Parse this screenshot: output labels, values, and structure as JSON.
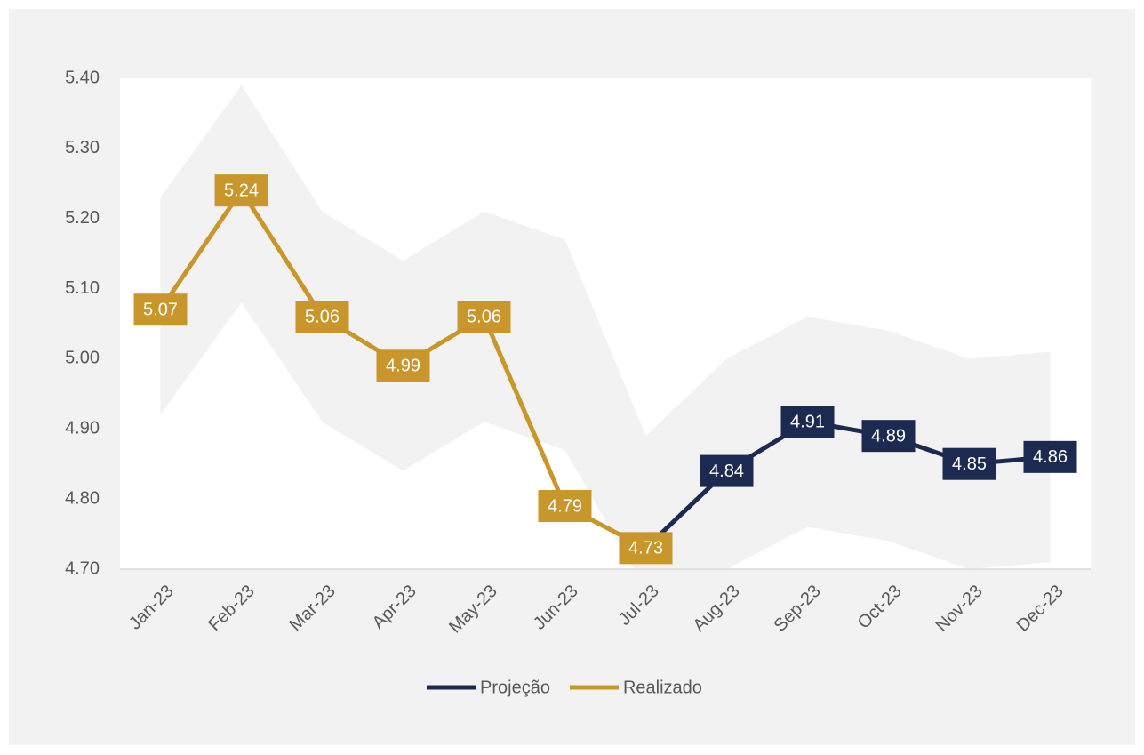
{
  "chart_data": {
    "type": "line",
    "categories": [
      "Jan-23",
      "Feb-23",
      "Mar-23",
      "Apr-23",
      "May-23",
      "Jun-23",
      "Jul-23",
      "Aug-23",
      "Sep-23",
      "Oct-23",
      "Nov-23",
      "Dec-23"
    ],
    "series": [
      {
        "name": "Projeção",
        "color": "#1c2951",
        "values": [
          null,
          null,
          null,
          null,
          null,
          null,
          4.73,
          4.84,
          4.91,
          4.89,
          4.85,
          4.86
        ]
      },
      {
        "name": "Realizado",
        "color": "#c9962b",
        "values": [
          5.07,
          5.24,
          5.06,
          4.99,
          5.06,
          4.79,
          4.73,
          null,
          null,
          null,
          null,
          null
        ]
      }
    ],
    "band": {
      "color": "#f2f2f2",
      "upper": [
        5.23,
        5.39,
        5.21,
        5.14,
        5.21,
        5.17,
        4.89,
        5.0,
        5.06,
        5.04,
        5.0,
        5.01
      ],
      "lower": [
        4.92,
        5.08,
        4.91,
        4.84,
        4.91,
        4.87,
        4.67,
        4.7,
        4.76,
        4.74,
        4.7,
        4.71
      ]
    },
    "ylim": [
      4.7,
      5.4
    ],
    "yticks": [
      {
        "value": 4.7,
        "label": "4.70"
      },
      {
        "value": 4.8,
        "label": "4.80"
      },
      {
        "value": 4.9,
        "label": "4.90"
      },
      {
        "value": 5.0,
        "label": "5.00"
      },
      {
        "value": 5.1,
        "label": "5.10"
      },
      {
        "value": 5.2,
        "label": "5.20"
      },
      {
        "value": 5.3,
        "label": "5.30"
      },
      {
        "value": 5.4,
        "label": "5.40"
      }
    ],
    "grid": false,
    "legend": "bottom"
  }
}
